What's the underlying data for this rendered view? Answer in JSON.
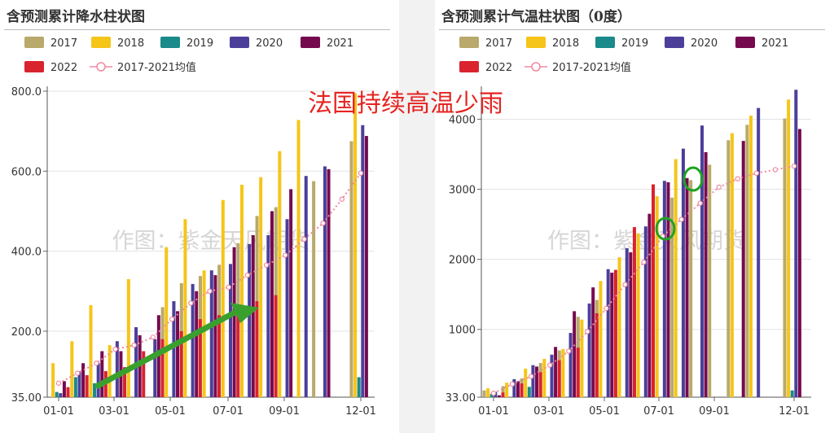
{
  "headline": "法国持续高温少雨",
  "watermark": "作图：紫金天风期货",
  "series_colors": {
    "2017": "#b9a96a",
    "2018": "#f5c518",
    "2019": "#1a8a8a",
    "2020": "#4b3f9a",
    "2021": "#760a4f",
    "2022": "#d9232e",
    "2017-2021均值": "#f08aa0"
  },
  "legend": [
    "2017",
    "2018",
    "2019",
    "2020",
    "2021",
    "2022",
    "2017-2021均值"
  ],
  "chart_data": [
    {
      "type": "bar",
      "title": "含预测累计降水柱状图",
      "x_ticks": [
        "01-01",
        "03-01",
        "05-01",
        "07-01",
        "09-01",
        "12-01"
      ],
      "y_ticks": [
        "35.00",
        "200.0",
        "400.0",
        "600.0",
        "800.0"
      ],
      "ylim": [
        35,
        800
      ],
      "periods": 17,
      "series": [
        {
          "name": "2017",
          "values": [
            null,
            null,
            null,
            null,
            null,
            null,
            260,
            320,
            338,
            366,
            420,
            488,
            510,
            null,
            575,
            null,
            675
          ]
        },
        {
          "name": "2018",
          "values": [
            120,
            175,
            265,
            165,
            330,
            null,
            410,
            480,
            352,
            528,
            566,
            585,
            650,
            728,
            null,
            null,
            795
          ]
        },
        {
          "name": "2019",
          "values": [
            48,
            85,
            70,
            null,
            null,
            null,
            null,
            null,
            null,
            null,
            null,
            null,
            null,
            null,
            null,
            null,
            85
          ]
        },
        {
          "name": "2020",
          "values": [
            45,
            100,
            120,
            175,
            210,
            180,
            275,
            318,
            352,
            368,
            418,
            440,
            480,
            588,
            612,
            null,
            715
          ]
        },
        {
          "name": "2021",
          "values": [
            75,
            120,
            150,
            150,
            190,
            240,
            250,
            300,
            340,
            410,
            440,
            500,
            555,
            null,
            605,
            null,
            688
          ]
        },
        {
          "name": "2022",
          "values": [
            60,
            90,
            100,
            110,
            150,
            180,
            200,
            230,
            240,
            250,
            275,
            290,
            null,
            null,
            null,
            null,
            null
          ]
        },
        {
          "name": "2017-2021均值",
          "type": "line",
          "values": [
            70,
            95,
            120,
            155,
            165,
            185,
            230,
            270,
            300,
            310,
            340,
            365,
            390,
            430,
            470,
            530,
            595
          ]
        }
      ]
    },
    {
      "type": "bar",
      "title": "含预测累计气温柱状图（0度）",
      "x_ticks": [
        "01-01",
        "03-01",
        "05-01",
        "07-01",
        "09-01",
        "12-01"
      ],
      "y_ticks": [
        "33.00",
        "1000",
        "2000",
        "3000",
        "4000"
      ],
      "ylim": [
        33,
        4400
      ],
      "periods": 17,
      "series": [
        {
          "name": "2017",
          "values": [
            130,
            190,
            300,
            520,
            700,
            1180,
            1420,
            1740,
            1990,
            2100,
            2880,
            3130,
            3350,
            3700,
            3920,
            null,
            4010
          ]
        },
        {
          "name": "2018",
          "values": [
            160,
            240,
            440,
            580,
            720,
            1140,
            1690,
            2030,
            2370,
            2900,
            3430,
            null,
            null,
            3800,
            4050,
            null,
            4280
          ]
        },
        {
          "name": "2019",
          "values": [
            80,
            null,
            180,
            null,
            null,
            null,
            null,
            null,
            null,
            null,
            null,
            null,
            null,
            null,
            null,
            null,
            130
          ]
        },
        {
          "name": "2020",
          "values": [
            110,
            290,
            490,
            640,
            950,
            1370,
            1860,
            2160,
            2470,
            3120,
            3580,
            3910,
            null,
            null,
            4160,
            null,
            4420
          ]
        },
        {
          "name": "2021",
          "values": [
            60,
            260,
            470,
            750,
            1260,
            1600,
            1810,
            2100,
            2650,
            3100,
            3160,
            3530,
            null,
            3690,
            null,
            null,
            3860
          ]
        },
        {
          "name": "2022",
          "values": [
            100,
            230,
            390,
            560,
            740,
            1230,
            1850,
            2460,
            3070,
            null,
            null,
            null,
            null,
            null,
            null,
            null,
            null
          ]
        },
        {
          "name": "2017-2021均值",
          "type": "line",
          "values": [
            90,
            220,
            330,
            490,
            690,
            970,
            1300,
            1640,
            1960,
            2330,
            2570,
            2800,
            3030,
            3150,
            3230,
            3280,
            3330
          ]
        }
      ]
    }
  ]
}
